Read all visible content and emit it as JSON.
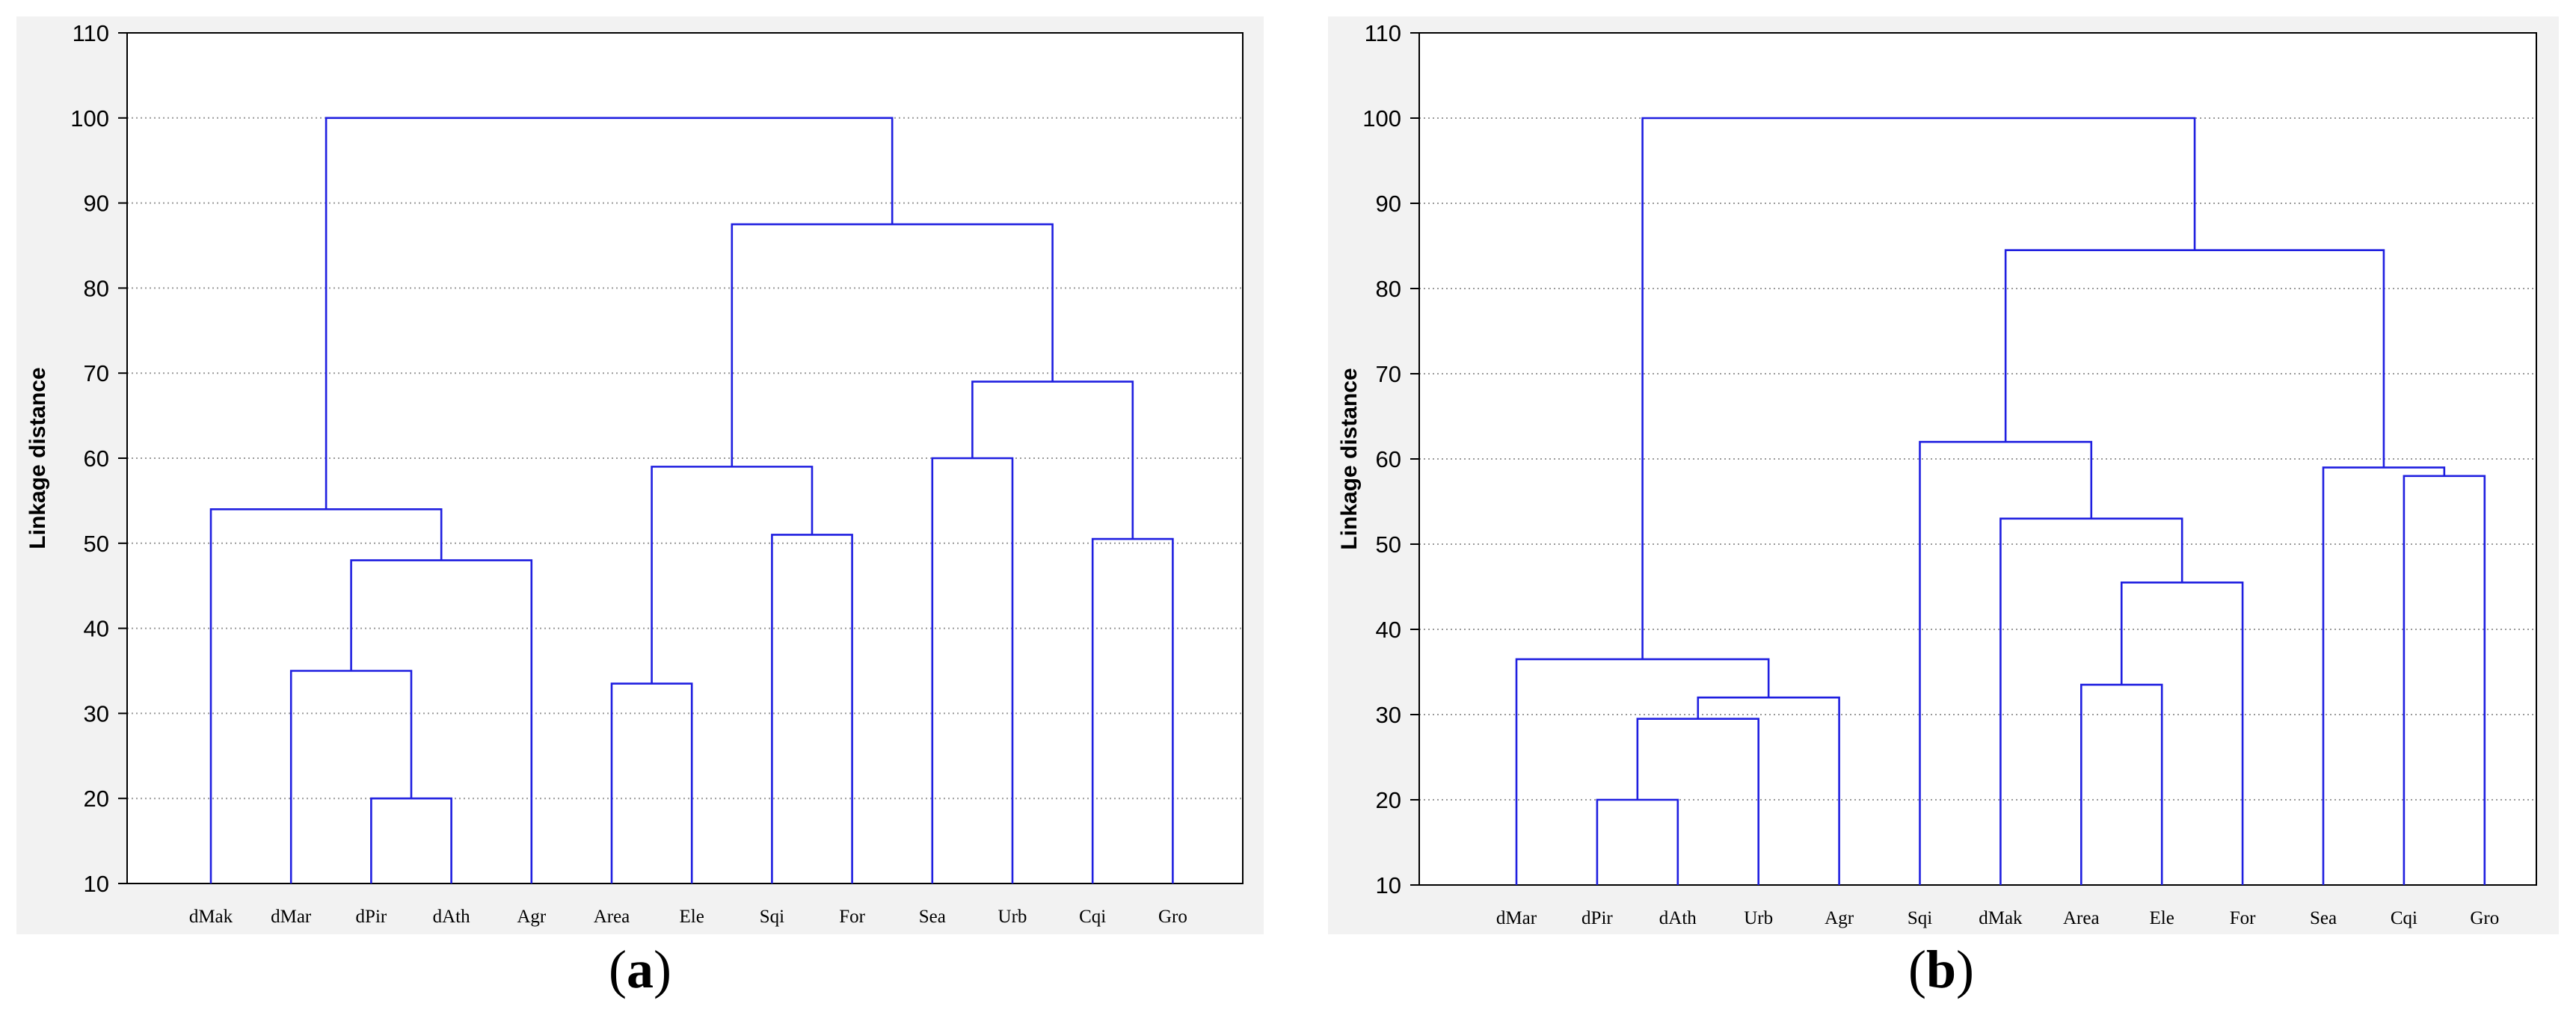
{
  "colors": {
    "line": "#1f1fe0",
    "grid": "#9a9a9a",
    "panel_bg": "#f2f2f2",
    "plot_bg": "#ffffff"
  },
  "chart_data": [
    {
      "type": "dendrogram",
      "panel": "a",
      "caption_open": "(",
      "caption_letter": "a",
      "caption_close": ")",
      "ylabel": "Linkage distance",
      "ylim": [
        10,
        110
      ],
      "yticks": [
        10,
        20,
        30,
        40,
        50,
        60,
        70,
        80,
        90,
        100,
        110
      ],
      "grid": true,
      "leaves": [
        "dMak",
        "dMar",
        "dPir",
        "dAth",
        "Agr",
        "Area",
        "Ele",
        "Sqi",
        "For",
        "Sea",
        "Urb",
        "Cqi",
        "Gro"
      ],
      "merges": [
        {
          "left": "L2",
          "right": "L3",
          "height": 20
        },
        {
          "left": "L1",
          "right": "M0",
          "height": 35
        },
        {
          "left": "M1",
          "right": "L4",
          "height": 48
        },
        {
          "left": "L0",
          "right": "M2",
          "height": 54
        },
        {
          "left": "L5",
          "right": "L6",
          "height": 33.5
        },
        {
          "left": "L7",
          "right": "L8",
          "height": 51
        },
        {
          "left": "M4",
          "right": "M5",
          "height": 59
        },
        {
          "left": "L9",
          "right": "L10",
          "height": 60
        },
        {
          "left": "L11",
          "right": "L12",
          "height": 50.5
        },
        {
          "left": "M7",
          "right": "M8",
          "height": 69
        },
        {
          "left": "M6",
          "right": "M9",
          "height": 87.5
        },
        {
          "left": "M3",
          "right": "M10",
          "height": 100
        }
      ]
    },
    {
      "type": "dendrogram",
      "panel": "b",
      "caption_open": "(",
      "caption_letter": "b",
      "caption_close": ")",
      "ylabel": "Linkage distance",
      "ylim": [
        10,
        110
      ],
      "yticks": [
        10,
        20,
        30,
        40,
        50,
        60,
        70,
        80,
        90,
        100,
        110
      ],
      "grid": true,
      "leaves": [
        "dMar",
        "dPir",
        "dAth",
        "Urb",
        "Agr",
        "Sqi",
        "dMak",
        "Area",
        "Ele",
        "For",
        "Sea",
        "Cqi",
        "Gro"
      ],
      "merges": [
        {
          "left": "L1",
          "right": "L2",
          "height": 20
        },
        {
          "left": "M0",
          "right": "L3",
          "height": 29.5
        },
        {
          "left": "M1",
          "right": "L4",
          "height": 32
        },
        {
          "left": "L0",
          "right": "M2",
          "height": 36.5
        },
        {
          "left": "L7",
          "right": "L8",
          "height": 33.5
        },
        {
          "left": "M4",
          "right": "L9",
          "height": 45.5
        },
        {
          "left": "L6",
          "right": "M5",
          "height": 53
        },
        {
          "left": "L5",
          "right": "M6",
          "height": 62
        },
        {
          "left": "L11",
          "right": "L12",
          "height": 58
        },
        {
          "left": "L10",
          "right": "M8",
          "height": 59
        },
        {
          "left": "M7",
          "right": "M9",
          "height": 84.5
        },
        {
          "left": "M3",
          "right": "M10",
          "height": 100
        }
      ]
    }
  ]
}
